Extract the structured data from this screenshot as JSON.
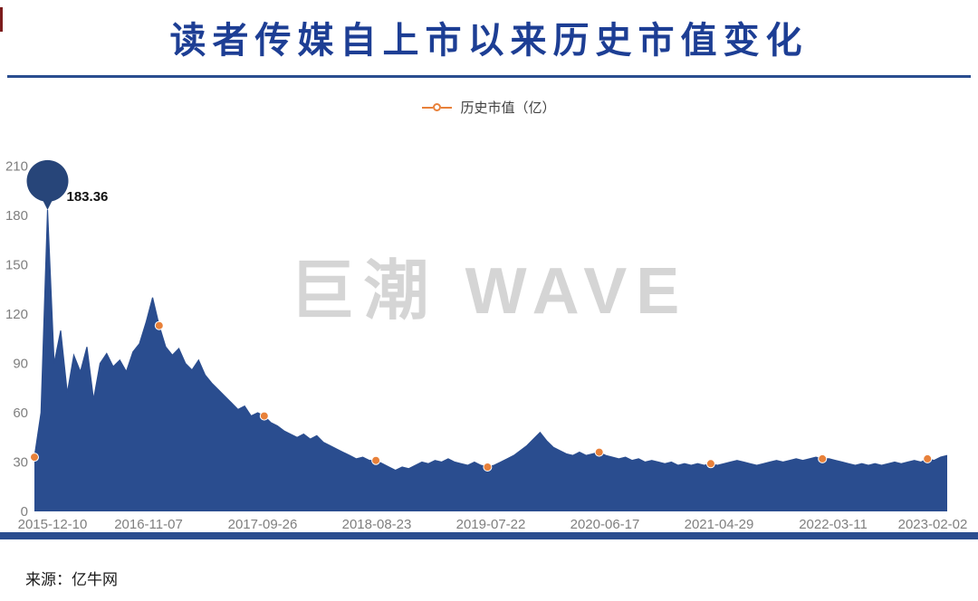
{
  "page": {
    "title": "读者传媒自上市以来历史市值变化",
    "watermark": "巨潮 WAVE",
    "source": "来源：亿牛网"
  },
  "legend": {
    "label": "历史市值（亿）",
    "marker_icon": "line-circle-marker",
    "color": "#e8813a"
  },
  "colors": {
    "series_fill": "#2a4d8f",
    "balloon_navy": "#274579",
    "marker_orange": "#e8813a",
    "title_blue": "#1d3e94",
    "axis_text": "#7f7f7f",
    "annotation_text": "#111111",
    "watermark_gray": "#d5d5d5"
  },
  "chart_data": {
    "type": "area",
    "title": "读者传媒自上市以来历史市值变化",
    "xlabel": "",
    "ylabel": "",
    "ylim": [
      0,
      210
    ],
    "y_ticks": [
      0,
      30,
      60,
      90,
      120,
      150,
      180,
      210
    ],
    "x_tick_labels": [
      "2015-12-10",
      "2016-11-07",
      "2017-09-26",
      "2018-08-23",
      "2019-07-22",
      "2020-06-17",
      "2021-04-29",
      "2022-03-11",
      "2023-02-02"
    ],
    "grid": false,
    "legend_position": "top-center",
    "legend": [
      "历史市值（亿）"
    ],
    "series": [
      {
        "name": "历史市值（亿）",
        "values": [
          33,
          60,
          183.36,
          90,
          110,
          72,
          95,
          85,
          100,
          68,
          90,
          96,
          88,
          92,
          85,
          97,
          102,
          115,
          130,
          113,
          100,
          95,
          99,
          90,
          86,
          92,
          83,
          78,
          74,
          70,
          66,
          62,
          64,
          58,
          60,
          58,
          54,
          52,
          49,
          47,
          45,
          47,
          44,
          46,
          42,
          40,
          38,
          36,
          34,
          32,
          33,
          31,
          31,
          29,
          27,
          25,
          27,
          26,
          28,
          30,
          29,
          31,
          30,
          32,
          30,
          29,
          28,
          30,
          28,
          27,
          28,
          30,
          32,
          34,
          37,
          40,
          44,
          48,
          43,
          39,
          37,
          35,
          34,
          36,
          34,
          35,
          36,
          34,
          33,
          32,
          33,
          31,
          32,
          30,
          31,
          30,
          29,
          30,
          28,
          29,
          28,
          29,
          28,
          29,
          28,
          29,
          30,
          31,
          30,
          29,
          28,
          29,
          30,
          31,
          30,
          31,
          32,
          31,
          32,
          33,
          32,
          32,
          31,
          30,
          29,
          28,
          29,
          28,
          29,
          28,
          29,
          30,
          29,
          30,
          31,
          30,
          32,
          31,
          33,
          34
        ]
      }
    ],
    "marker_point_indices": [
      0,
      19,
      35,
      52,
      69,
      86,
      103,
      120,
      136
    ],
    "annotation": {
      "label": "183.36",
      "value": 183.36,
      "index": 2
    }
  }
}
